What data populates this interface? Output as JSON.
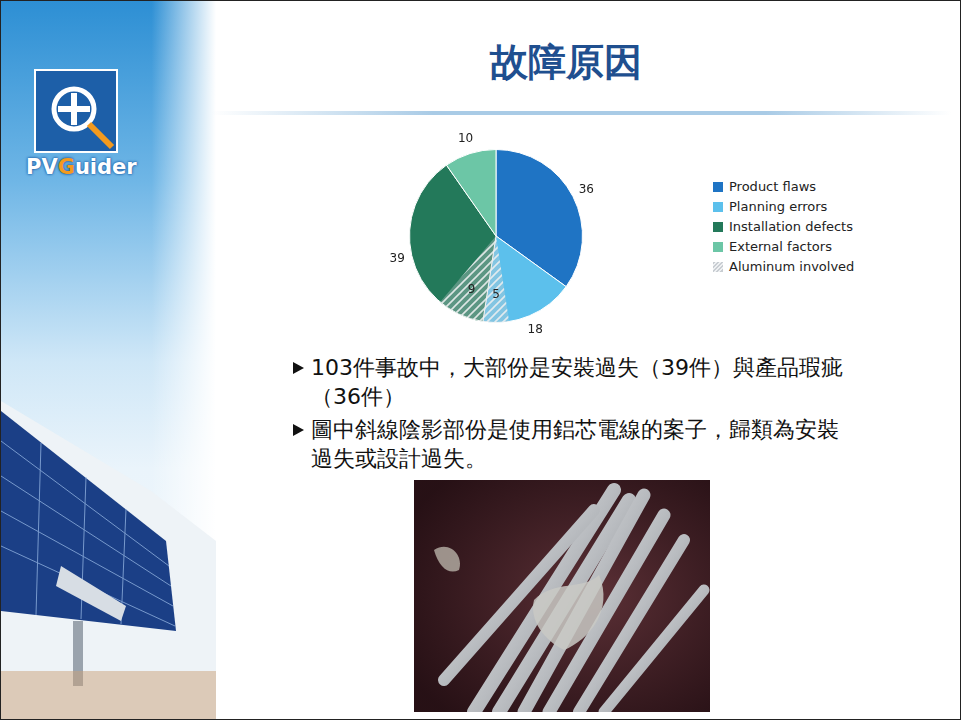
{
  "slide": {
    "title": "故障原因",
    "logo": [
      "PV",
      "Guider"
    ],
    "bullets": [
      "103件事故中，大部份是安裝過失（39件）與產品瑕疵（36件）",
      "圖中斜線陰影部份是使用鋁芯電線的案子，歸類為安裝過失或設計過失。"
    ]
  },
  "chart_data": {
    "type": "pie",
    "categories": [
      "Product flaws",
      "Planning errors",
      "Installation defects",
      "External factors"
    ],
    "values": [
      36,
      18,
      39,
      10
    ],
    "colors": [
      "#1f74c4",
      "#5cc0ec",
      "#23795a",
      "#6cc6a6"
    ],
    "aluminum_involved": {
      "name": "Aluminum involved",
      "values": [
        null,
        5,
        9,
        null
      ]
    },
    "data_labels": true,
    "legend": "right"
  }
}
